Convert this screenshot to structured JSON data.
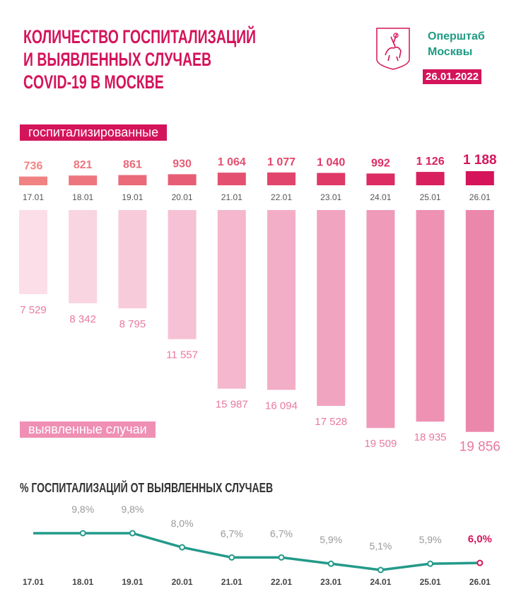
{
  "header": {
    "title_lines": [
      "КОЛИЧЕСТВО ГОСПИТАЛИЗАЦИЙ",
      "И ВЫЯВЛЕННЫХ СЛУЧАЕВ",
      "COVID-19 В МОСКВЕ"
    ],
    "org_lines": [
      "Оперштаб",
      "Москвы"
    ],
    "date": "26.01.2022",
    "logo": "moscow-coat-of-arms"
  },
  "colors": {
    "accent": "#d4145a",
    "teal": "#1e9b82",
    "cases": "#ef8fb3"
  },
  "chart_data": [
    {
      "type": "bar",
      "title": "госпитализированные",
      "categories": [
        "17.01",
        "18.01",
        "19.01",
        "20.01",
        "21.01",
        "22.01",
        "23.01",
        "24.01",
        "25.01",
        "26.01"
      ],
      "values": [
        736,
        821,
        861,
        930,
        1064,
        1077,
        1040,
        992,
        1126,
        1188
      ],
      "labels": [
        "736",
        "821",
        "861",
        "930",
        "1 064",
        "1 077",
        "1 040",
        "992",
        "1 126",
        "1 188"
      ]
    },
    {
      "type": "bar",
      "title": "выявленные случаи",
      "categories": [
        "17.01",
        "18.01",
        "19.01",
        "20.01",
        "21.01",
        "22.01",
        "23.01",
        "24.01",
        "25.01",
        "26.01"
      ],
      "values": [
        7529,
        8342,
        8795,
        11557,
        15987,
        16094,
        17528,
        19509,
        18935,
        19856
      ],
      "labels": [
        "7 529",
        "8 342",
        "8 795",
        "11 557",
        "15 987",
        "16 094",
        "17 528",
        "19 509",
        "18 935",
        "19 856"
      ]
    },
    {
      "type": "line",
      "title": "% ГОСПИТАЛИЗАЦИЙ ОТ ВЫЯВЛЕННЫХ СЛУЧАЕВ",
      "categories": [
        "17.01",
        "18.01",
        "19.01",
        "20.01",
        "21.01",
        "22.01",
        "23.01",
        "24.01",
        "25.01",
        "26.01"
      ],
      "values": [
        null,
        9.8,
        9.8,
        8.0,
        6.7,
        6.7,
        5.9,
        5.1,
        5.9,
        6.0
      ],
      "labels": [
        "",
        "9,8%",
        "9,8%",
        "8,0%",
        "6,7%",
        "6,7%",
        "5,9%",
        "5,1%",
        "5,9%",
        "6,0%"
      ]
    }
  ]
}
